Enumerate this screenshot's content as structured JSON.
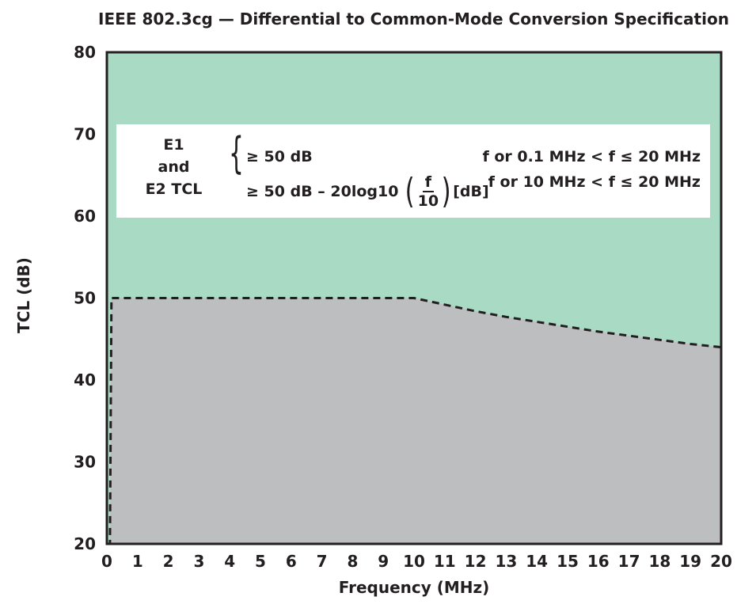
{
  "chart_data": {
    "type": "area",
    "title": "IEEE 802.3cg — Differential to Common-Mode Conversion Specification",
    "xlabel": "Frequency (MHz)",
    "ylabel": "TCL (dB)",
    "xlim": [
      0,
      20
    ],
    "ylim": [
      20,
      80
    ],
    "x_ticks": [
      "0",
      "1",
      "2",
      "3",
      "4",
      "5",
      "6",
      "7",
      "8",
      "9",
      "10",
      "11",
      "12",
      "13",
      "14",
      "15",
      "16",
      "17",
      "18",
      "19",
      "20"
    ],
    "y_ticks": [
      "20",
      "30",
      "40",
      "50",
      "60",
      "70",
      "80"
    ],
    "grid": false,
    "colors": {
      "pass_region": "#a9dbc4",
      "fail_region": "#bdbec0",
      "limit_line": "#231f20",
      "frame": "#231f20"
    },
    "series": [
      {
        "line_style": "dashed",
        "x": [
          0,
          0.1,
          0.15,
          10,
          11,
          12,
          13,
          14,
          15,
          16,
          17,
          18,
          19,
          20
        ],
        "y": [
          20,
          20,
          50,
          50,
          49.2,
          48.4,
          47.7,
          47.1,
          46.5,
          45.9,
          45.4,
          44.9,
          44.4,
          44.0
        ]
      }
    ],
    "annotation": {
      "label": "E1\nand\nE2 TCL",
      "label_lines": [
        "E1",
        "and",
        "E2 TCL"
      ],
      "formula_1": "≥ 50 dB",
      "formula_2_prefix": "≥ 50 dB – 20log10",
      "formula_2_num": "f",
      "formula_2_den": "10",
      "formula_2_suffix": "[dB]",
      "condition_1": "f or 0.1 MHz < f ≤ 20 MHz",
      "condition_2": "f or 10 MHz < f ≤ 20 MHz"
    }
  }
}
